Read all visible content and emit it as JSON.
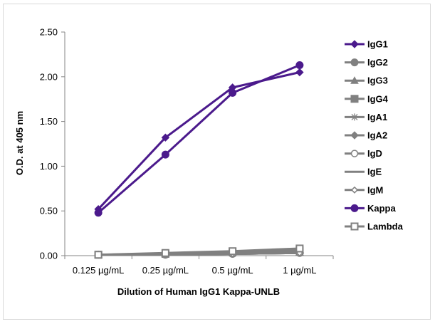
{
  "chart_data": {
    "type": "line",
    "title": "",
    "xlabel": "Dilution of Human IgG1 Kappa-UNLB",
    "ylabel": "O.D. at 405 nm",
    "categories": [
      "0.125 µg/mL",
      "0.25 µg/mL",
      "0.5 µg/mL",
      "1 µg/mL"
    ],
    "ylim": [
      0,
      2.5
    ],
    "yticks": [
      "0.00",
      "0.50",
      "1.00",
      "1.50",
      "2.00",
      "2.50"
    ],
    "grid": false,
    "legend_position": "right",
    "series": [
      {
        "name": "IgG1",
        "color": "#4b1a8c",
        "marker": "diamond",
        "line": true,
        "values": [
          0.52,
          1.32,
          1.88,
          2.05
        ]
      },
      {
        "name": "IgG2",
        "color": "#808080",
        "marker": "circle",
        "line": true,
        "values": [
          0.01,
          0.01,
          0.02,
          0.03
        ]
      },
      {
        "name": "IgG3",
        "color": "#808080",
        "marker": "triangle",
        "line": true,
        "values": [
          0.01,
          0.02,
          0.03,
          0.04
        ]
      },
      {
        "name": "IgG4",
        "color": "#808080",
        "marker": "square",
        "line": true,
        "values": [
          0.01,
          0.02,
          0.04,
          0.06
        ]
      },
      {
        "name": "IgA1",
        "color": "#808080",
        "marker": "star",
        "line": true,
        "values": [
          0.01,
          0.01,
          0.02,
          0.03
        ]
      },
      {
        "name": "IgA2",
        "color": "#808080",
        "marker": "diamond",
        "line": true,
        "values": [
          0.01,
          0.02,
          0.03,
          0.04
        ]
      },
      {
        "name": "IgD",
        "color": "#808080",
        "marker": "circle-open",
        "line": true,
        "values": [
          0.01,
          0.01,
          0.02,
          0.03
        ]
      },
      {
        "name": "IgE",
        "color": "#808080",
        "marker": "dash",
        "line": true,
        "values": [
          0.01,
          0.01,
          0.02,
          0.03
        ]
      },
      {
        "name": "IgM",
        "color": "#808080",
        "marker": "diamond-open",
        "line": true,
        "values": [
          0.01,
          0.01,
          0.02,
          0.03
        ]
      },
      {
        "name": "Kappa",
        "color": "#4b1a8c",
        "marker": "circle",
        "line": true,
        "values": [
          0.48,
          1.13,
          1.82,
          2.13
        ]
      },
      {
        "name": "Lambda",
        "color": "#808080",
        "marker": "square-open",
        "line": true,
        "values": [
          0.01,
          0.03,
          0.05,
          0.08
        ]
      }
    ]
  }
}
